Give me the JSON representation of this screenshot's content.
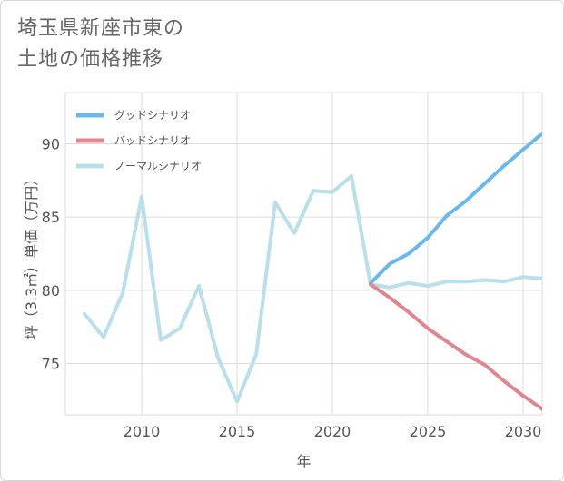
{
  "title_lines": [
    "埼玉県新座市東の",
    "土地の価格推移"
  ],
  "chart_data": {
    "type": "line",
    "xlabel": "年",
    "ylabel": "坪（3.3㎡）単価（万円）",
    "xlim": [
      2006,
      2031
    ],
    "ylim": [
      71.5,
      93.5
    ],
    "x_ticks": [
      2010,
      2015,
      2020,
      2025,
      2030
    ],
    "y_ticks": [
      75,
      80,
      85,
      90
    ],
    "legend_position": "top-left",
    "series": [
      {
        "name": "グッドシナリオ",
        "color": "#6cb8ec",
        "x": [
          2022,
          2023,
          2024,
          2025,
          2026,
          2027,
          2028,
          2029,
          2030,
          2031
        ],
        "values": [
          80.5,
          81.8,
          82.5,
          83.6,
          85.1,
          86.1,
          87.3,
          88.5,
          89.6,
          90.7
        ]
      },
      {
        "name": "バッドシナリオ",
        "color": "#e0868f",
        "x": [
          2022,
          2023,
          2024,
          2025,
          2026,
          2027,
          2028,
          2029,
          2030,
          2031
        ],
        "values": [
          80.4,
          79.5,
          78.5,
          77.4,
          76.5,
          75.6,
          74.9,
          73.8,
          72.8,
          71.9
        ]
      },
      {
        "name": "ノーマルシナリオ",
        "color": "#b9dfea",
        "x": [
          2007,
          2008,
          2009,
          2010,
          2011,
          2012,
          2013,
          2014,
          2015,
          2016,
          2017,
          2018,
          2019,
          2020,
          2021,
          2022,
          2023,
          2024,
          2025,
          2026,
          2027,
          2028,
          2029,
          2030,
          2031
        ],
        "values": [
          78.4,
          76.8,
          79.8,
          86.4,
          76.6,
          77.4,
          80.3,
          75.4,
          72.4,
          75.6,
          86.0,
          83.9,
          86.8,
          86.7,
          87.8,
          80.4,
          80.2,
          80.5,
          80.3,
          80.6,
          80.6,
          80.7,
          80.6,
          80.9,
          80.8
        ]
      }
    ]
  }
}
